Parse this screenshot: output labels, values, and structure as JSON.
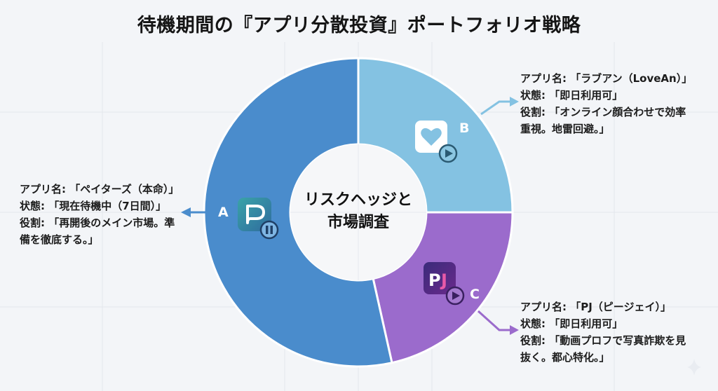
{
  "title": "待機期間の『アプリ分散投資』ポートフォリオ戦略",
  "center_label": {
    "line1": "リスクヘッジと",
    "line2": "市場調査"
  },
  "colors": {
    "background": "#f3f5f8",
    "slice_a": "#4a8ccc",
    "slice_b": "#84c2e2",
    "slice_c": "#9b6bcc",
    "arrow_a": "#4a8ccc",
    "arrow_b": "#84c2e2",
    "arrow_c": "#9b6bcc"
  },
  "slices": [
    {
      "letter": "A",
      "icon": "pairs-p-app-icon",
      "status_icon": "pause-icon",
      "callout": {
        "line1": "アプリ名: 「ペイターズ（本命）」",
        "line2": "状態: 「現在待機中（7日間）」",
        "line3": "役割: 「再開後のメイン市場。準",
        "line4": "備を徹底する。」"
      }
    },
    {
      "letter": "B",
      "icon": "heart-app-icon",
      "status_icon": "play-icon",
      "callout": {
        "line1": "アプリ名: 「ラブアン（LoveAn）」",
        "line2": "状態: 「即日利用可」",
        "line3": "役割: 「オンライン顔合わせで効率",
        "line4": "重視。地雷回避。」"
      }
    },
    {
      "letter": "C",
      "icon": "pj-app-icon",
      "status_icon": "play-icon",
      "callout": {
        "line1": "アプリ名: 「PJ（ピージェイ）」",
        "line2": "状態: 「即日利用可」",
        "line3": "役割: 「動画プロフで写真詐欺を見",
        "line4": "抜く。都心特化。」"
      }
    }
  ],
  "chart_data": {
    "type": "pie",
    "subtype": "donut",
    "title": "待機期間の『アプリ分散投資』ポートフォリオ戦略",
    "center_text": "リスクヘッジと市場調査",
    "categories": [
      "A: ペイターズ（本命）",
      "B: ラブアン（LoveAn）",
      "C: PJ（ピージェイ）"
    ],
    "values": [
      53.5,
      25,
      21.5
    ],
    "colors": [
      "#4a8ccc",
      "#84c2e2",
      "#9b6bcc"
    ],
    "legend": "callouts",
    "start_angle_deg": 0,
    "direction": "clockwise"
  }
}
